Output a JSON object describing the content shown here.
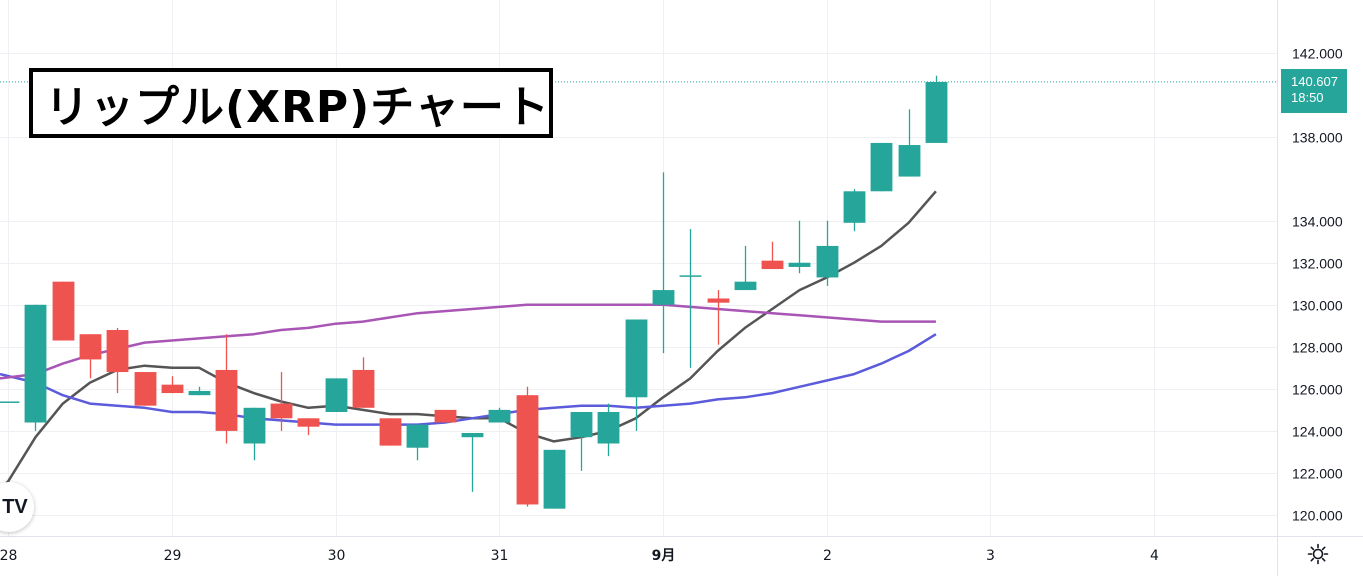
{
  "title": "リップル(XRP)チャート",
  "price_tag": {
    "price": "140.607",
    "countdown": "18:50"
  },
  "logo_text": "TV",
  "colors": {
    "up": "#26a69a",
    "down": "#ef5350",
    "ma_short": "#555555",
    "ma_mid": "#5b5bdb",
    "ma_long": "#a855b5",
    "grid": "#eef0f3"
  },
  "chart_data": {
    "type": "candlestick",
    "title": "リップル(XRP)チャート",
    "y_axis_side": "right",
    "ylim": [
      119.0,
      144.5
    ],
    "y_ticks": [
      120,
      122,
      124,
      126,
      128,
      130,
      132,
      134,
      138,
      142
    ],
    "y_tick_labels": [
      "120.000",
      "122.000",
      "124.000",
      "126.000",
      "128.000",
      "130.000",
      "132.000",
      "134.000",
      "138.000",
      "142.000"
    ],
    "x_ticks": [
      {
        "label": "28",
        "t": 0
      },
      {
        "label": "29",
        "t": 6
      },
      {
        "label": "30",
        "t": 12
      },
      {
        "label": "31",
        "t": 18
      },
      {
        "label": "9月",
        "t": 24
      },
      {
        "label": "2",
        "t": 30
      },
      {
        "label": "3",
        "t": 36
      },
      {
        "label": "4",
        "t": 42
      }
    ],
    "t_range": [
      -0.3,
      46.5
    ],
    "last_price": 140.607,
    "candles": [
      {
        "t": 0,
        "o": 125.4,
        "h": 125.4,
        "l": 125.4,
        "c": 125.4
      },
      {
        "t": 1,
        "o": 124.4,
        "h": 130.0,
        "l": 124.0,
        "c": 130.0
      },
      {
        "t": 2,
        "o": 131.1,
        "h": 131.1,
        "l": 128.3,
        "c": 128.3
      },
      {
        "t": 3,
        "o": 128.6,
        "h": 128.6,
        "l": 126.5,
        "c": 127.4
      },
      {
        "t": 4,
        "o": 128.8,
        "h": 128.9,
        "l": 125.8,
        "c": 126.8
      },
      {
        "t": 5,
        "o": 126.8,
        "h": 126.8,
        "l": 125.2,
        "c": 125.2
      },
      {
        "t": 6,
        "o": 126.2,
        "h": 126.6,
        "l": 125.8,
        "c": 125.8
      },
      {
        "t": 7,
        "o": 125.7,
        "h": 126.1,
        "l": 125.7,
        "c": 125.9
      },
      {
        "t": 8,
        "o": 126.9,
        "h": 128.6,
        "l": 123.4,
        "c": 124.0
      },
      {
        "t": 9,
        "o": 123.4,
        "h": 125.1,
        "l": 122.6,
        "c": 125.1
      },
      {
        "t": 10,
        "o": 125.3,
        "h": 126.8,
        "l": 124.0,
        "c": 124.6
      },
      {
        "t": 11,
        "o": 124.6,
        "h": 124.6,
        "l": 123.8,
        "c": 124.2
      },
      {
        "t": 12,
        "o": 124.9,
        "h": 126.5,
        "l": 124.9,
        "c": 126.5
      },
      {
        "t": 13,
        "o": 126.9,
        "h": 127.5,
        "l": 125.1,
        "c": 125.1
      },
      {
        "t": 14,
        "o": 124.6,
        "h": 124.6,
        "l": 123.3,
        "c": 123.3
      },
      {
        "t": 15,
        "o": 123.2,
        "h": 124.3,
        "l": 122.6,
        "c": 124.3
      },
      {
        "t": 16,
        "o": 125.0,
        "h": 125.0,
        "l": 124.4,
        "c": 124.4
      },
      {
        "t": 17,
        "o": 123.7,
        "h": 123.9,
        "l": 121.1,
        "c": 123.9
      },
      {
        "t": 18,
        "o": 124.4,
        "h": 125.1,
        "l": 124.4,
        "c": 125.0
      },
      {
        "t": 19,
        "o": 125.7,
        "h": 126.1,
        "l": 120.4,
        "c": 120.5
      },
      {
        "t": 20,
        "o": 120.3,
        "h": 123.1,
        "l": 120.3,
        "c": 123.1
      },
      {
        "t": 21,
        "o": 123.7,
        "h": 124.9,
        "l": 122.1,
        "c": 124.9
      },
      {
        "t": 22,
        "o": 123.4,
        "h": 125.3,
        "l": 122.8,
        "c": 124.9
      },
      {
        "t": 23,
        "o": 125.6,
        "h": 129.3,
        "l": 124.0,
        "c": 129.3
      },
      {
        "t": 24,
        "o": 130.0,
        "h": 136.3,
        "l": 127.7,
        "c": 130.7
      },
      {
        "t": 25,
        "o": 131.4,
        "h": 133.6,
        "l": 127.0,
        "c": 131.4
      },
      {
        "t": 26,
        "o": 130.3,
        "h": 130.7,
        "l": 128.1,
        "c": 130.1
      },
      {
        "t": 27,
        "o": 130.7,
        "h": 132.8,
        "l": 130.7,
        "c": 131.1
      },
      {
        "t": 28,
        "o": 132.1,
        "h": 133.0,
        "l": 131.7,
        "c": 131.7
      },
      {
        "t": 29,
        "o": 131.8,
        "h": 134.0,
        "l": 131.5,
        "c": 132.0
      },
      {
        "t": 30,
        "o": 131.3,
        "h": 134.0,
        "l": 130.9,
        "c": 132.8
      },
      {
        "t": 31,
        "o": 133.9,
        "h": 135.5,
        "l": 133.5,
        "c": 135.4
      },
      {
        "t": 32,
        "o": 135.4,
        "h": 137.7,
        "l": 135.4,
        "c": 137.7
      },
      {
        "t": 33,
        "o": 136.1,
        "h": 139.3,
        "l": 136.1,
        "c": 137.6
      },
      {
        "t": 34,
        "o": 137.7,
        "h": 140.9,
        "l": 137.7,
        "c": 140.6
      }
    ],
    "series": [
      {
        "key": "ma_short",
        "points": [
          [
            -0.3,
            121.2
          ],
          [
            0,
            121.6
          ],
          [
            1,
            123.7
          ],
          [
            2,
            125.3
          ],
          [
            3,
            126.3
          ],
          [
            4,
            126.9
          ],
          [
            5,
            127.1
          ],
          [
            6,
            127.0
          ],
          [
            7,
            127.0
          ],
          [
            8,
            126.3
          ],
          [
            9,
            125.8
          ],
          [
            10,
            125.4
          ],
          [
            11,
            125.1
          ],
          [
            12,
            125.2
          ],
          [
            13,
            125.0
          ],
          [
            14,
            124.8
          ],
          [
            15,
            124.8
          ],
          [
            16,
            124.7
          ],
          [
            17,
            124.6
          ],
          [
            18,
            124.6
          ],
          [
            19,
            123.9
          ],
          [
            20,
            123.5
          ],
          [
            21,
            123.7
          ],
          [
            22,
            124.0
          ],
          [
            23,
            124.6
          ],
          [
            24,
            125.6
          ],
          [
            25,
            126.5
          ],
          [
            26,
            127.8
          ],
          [
            27,
            128.9
          ],
          [
            28,
            129.8
          ],
          [
            29,
            130.7
          ],
          [
            30,
            131.3
          ],
          [
            31,
            132.0
          ],
          [
            32,
            132.8
          ],
          [
            33,
            133.9
          ],
          [
            34,
            135.4
          ]
        ]
      },
      {
        "key": "ma_mid",
        "points": [
          [
            -0.3,
            126.7
          ],
          [
            1,
            126.3
          ],
          [
            2,
            125.7
          ],
          [
            3,
            125.3
          ],
          [
            4,
            125.2
          ],
          [
            5,
            125.1
          ],
          [
            6,
            124.9
          ],
          [
            7,
            124.9
          ],
          [
            8,
            124.8
          ],
          [
            9,
            124.6
          ],
          [
            10,
            124.5
          ],
          [
            11,
            124.4
          ],
          [
            12,
            124.3
          ],
          [
            13,
            124.3
          ],
          [
            14,
            124.3
          ],
          [
            15,
            124.3
          ],
          [
            16,
            124.4
          ],
          [
            17,
            124.6
          ],
          [
            18,
            124.8
          ],
          [
            19,
            125.0
          ],
          [
            20,
            125.1
          ],
          [
            21,
            125.2
          ],
          [
            22,
            125.2
          ],
          [
            23,
            125.1
          ],
          [
            24,
            125.2
          ],
          [
            25,
            125.3
          ],
          [
            26,
            125.5
          ],
          [
            27,
            125.6
          ],
          [
            28,
            125.8
          ],
          [
            29,
            126.1
          ],
          [
            30,
            126.4
          ],
          [
            31,
            126.7
          ],
          [
            32,
            127.2
          ],
          [
            33,
            127.8
          ],
          [
            34,
            128.6
          ]
        ]
      },
      {
        "key": "ma_long",
        "points": [
          [
            -0.3,
            126.5
          ],
          [
            1,
            126.7
          ],
          [
            2,
            127.2
          ],
          [
            3,
            127.6
          ],
          [
            4,
            127.9
          ],
          [
            5,
            128.2
          ],
          [
            6,
            128.3
          ],
          [
            7,
            128.4
          ],
          [
            8,
            128.5
          ],
          [
            9,
            128.6
          ],
          [
            10,
            128.8
          ],
          [
            11,
            128.9
          ],
          [
            12,
            129.1
          ],
          [
            13,
            129.2
          ],
          [
            14,
            129.4
          ],
          [
            15,
            129.6
          ],
          [
            16,
            129.7
          ],
          [
            17,
            129.8
          ],
          [
            18,
            129.9
          ],
          [
            19,
            130.0
          ],
          [
            20,
            130.0
          ],
          [
            21,
            130.0
          ],
          [
            22,
            130.0
          ],
          [
            23,
            130.0
          ],
          [
            24,
            130.0
          ],
          [
            25,
            129.9
          ],
          [
            26,
            129.8
          ],
          [
            27,
            129.7
          ],
          [
            28,
            129.6
          ],
          [
            29,
            129.5
          ],
          [
            30,
            129.4
          ],
          [
            31,
            129.3
          ],
          [
            32,
            129.2
          ],
          [
            33,
            129.2
          ],
          [
            34,
            129.2
          ]
        ]
      }
    ]
  }
}
